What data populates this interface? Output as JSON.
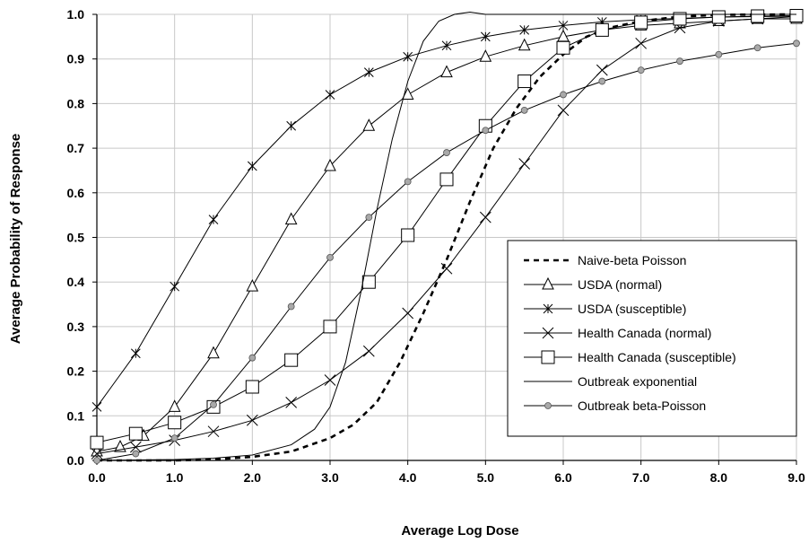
{
  "chart_data": {
    "type": "line",
    "xlabel": "Average Log Dose",
    "ylabel": "Average Probability of Response",
    "xlim": [
      0,
      9
    ],
    "ylim": [
      0,
      1
    ],
    "xticks": [
      "0.0",
      "1.0",
      "2.0",
      "3.0",
      "4.0",
      "5.0",
      "6.0",
      "7.0",
      "8.0",
      "9.0"
    ],
    "yticks": [
      "0.0",
      "0.1",
      "0.2",
      "0.3",
      "0.4",
      "0.5",
      "0.6",
      "0.7",
      "0.8",
      "0.9",
      "1.0"
    ],
    "grid": true,
    "legend_position": "lower-right",
    "series": [
      {
        "name": "Naive-beta Poisson",
        "line": "dashed",
        "marker": "none",
        "x": [
          0.0,
          0.5,
          1.0,
          1.5,
          2.0,
          2.5,
          3.0,
          3.3,
          3.6,
          3.9,
          4.2,
          4.5,
          4.8,
          5.1,
          5.4,
          5.7,
          6.0,
          6.3,
          6.6,
          7.0,
          7.5,
          8.0,
          9.0
        ],
        "y": [
          0.0,
          0.0,
          0.0,
          0.002,
          0.008,
          0.02,
          0.05,
          0.08,
          0.13,
          0.22,
          0.33,
          0.45,
          0.58,
          0.7,
          0.79,
          0.86,
          0.91,
          0.95,
          0.97,
          0.985,
          0.995,
          0.999,
          1.0
        ]
      },
      {
        "name": "USDA (normal)",
        "line": "solid",
        "marker": "triangle",
        "x": [
          0.0,
          0.3,
          0.6,
          1.0,
          1.5,
          2.0,
          2.5,
          3.0,
          3.5,
          4.0,
          4.5,
          5.0,
          5.5,
          6.0,
          6.5,
          7.0,
          7.5,
          8.0,
          8.5,
          9.0
        ],
        "y": [
          0.02,
          0.03,
          0.055,
          0.12,
          0.24,
          0.39,
          0.54,
          0.66,
          0.75,
          0.82,
          0.87,
          0.905,
          0.93,
          0.95,
          0.965,
          0.975,
          0.98,
          0.985,
          0.99,
          0.99
        ]
      },
      {
        "name": "USDA (susceptible)",
        "line": "solid",
        "marker": "asterisk",
        "x": [
          0.0,
          0.5,
          1.0,
          1.5,
          2.0,
          2.5,
          3.0,
          3.5,
          4.0,
          4.5,
          5.0,
          5.5,
          6.0,
          6.5,
          7.0,
          7.5,
          8.0,
          8.5,
          9.0
        ],
        "y": [
          0.12,
          0.24,
          0.39,
          0.54,
          0.66,
          0.75,
          0.82,
          0.87,
          0.905,
          0.93,
          0.95,
          0.965,
          0.975,
          0.983,
          0.988,
          0.991,
          0.994,
          0.995,
          0.996
        ]
      },
      {
        "name": "Health Canada (normal)",
        "line": "solid",
        "marker": "x",
        "x": [
          0.0,
          0.5,
          1.0,
          1.5,
          2.0,
          2.5,
          3.0,
          3.5,
          4.0,
          4.5,
          5.0,
          5.5,
          6.0,
          6.5,
          7.0,
          7.5,
          8.0,
          8.5,
          9.0
        ],
        "y": [
          0.015,
          0.03,
          0.045,
          0.065,
          0.09,
          0.13,
          0.18,
          0.245,
          0.33,
          0.43,
          0.545,
          0.665,
          0.785,
          0.875,
          0.935,
          0.97,
          0.985,
          0.99,
          0.995
        ]
      },
      {
        "name": "Health Canada (susceptible)",
        "line": "solid",
        "marker": "square",
        "x": [
          0.0,
          0.5,
          1.0,
          1.5,
          2.0,
          2.5,
          3.0,
          3.5,
          4.0,
          4.5,
          5.0,
          5.5,
          6.0,
          6.5,
          7.0,
          7.5,
          8.0,
          8.5,
          9.0
        ],
        "y": [
          0.04,
          0.06,
          0.085,
          0.12,
          0.165,
          0.225,
          0.3,
          0.4,
          0.505,
          0.63,
          0.75,
          0.85,
          0.925,
          0.965,
          0.982,
          0.99,
          0.994,
          0.996,
          0.997
        ]
      },
      {
        "name": "Outbreak exponential",
        "line": "solid",
        "marker": "none",
        "x": [
          0.0,
          1.0,
          1.5,
          2.0,
          2.5,
          2.8,
          3.0,
          3.2,
          3.4,
          3.6,
          3.8,
          4.0,
          4.2,
          4.4,
          4.6,
          4.8,
          5.0,
          5.5,
          6.0,
          7.0,
          8.0,
          9.0
        ],
        "y": [
          0.0,
          0.002,
          0.005,
          0.012,
          0.035,
          0.07,
          0.12,
          0.22,
          0.38,
          0.56,
          0.72,
          0.85,
          0.94,
          0.985,
          1.0,
          1.005,
          1.0,
          1.0,
          1.0,
          1.0,
          1.0,
          1.0
        ]
      },
      {
        "name": "Outbreak beta-Poisson",
        "line": "solid",
        "marker": "circle",
        "x": [
          0.0,
          0.5,
          1.0,
          1.5,
          2.0,
          2.5,
          3.0,
          3.5,
          4.0,
          4.5,
          5.0,
          5.5,
          6.0,
          6.5,
          7.0,
          7.5,
          8.0,
          8.5,
          9.0
        ],
        "y": [
          0.0,
          0.015,
          0.05,
          0.125,
          0.23,
          0.345,
          0.455,
          0.545,
          0.625,
          0.69,
          0.74,
          0.785,
          0.82,
          0.85,
          0.875,
          0.895,
          0.91,
          0.925,
          0.935
        ]
      }
    ]
  }
}
